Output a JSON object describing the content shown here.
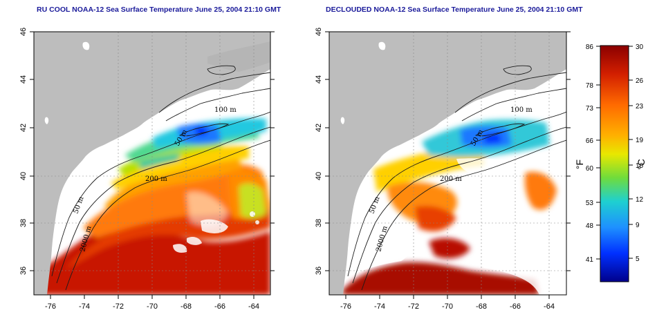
{
  "titles": {
    "left": "RU COOL NOAA-12 Sea Surface Temperature June 25, 2004 21:10 GMT",
    "right": "DECLOUDED NOAA-12 Sea Surface Temperature June 25, 2004 21:10 GMT"
  },
  "axes": {
    "lon_ticks": [
      "-76",
      "-74",
      "-72",
      "-70",
      "-68",
      "-66",
      "-64"
    ],
    "lat_ticks": [
      "46",
      "44",
      "42",
      "40",
      "38",
      "36"
    ]
  },
  "contour_labels": {
    "left": [
      "100 m",
      "50 m",
      "200 m",
      "50 m",
      "2000 m"
    ],
    "right": [
      "100 m",
      "50 m",
      "200 m",
      "50 m",
      "2000 m"
    ]
  },
  "colorbar": {
    "fahrenheit_unit": "°F",
    "celsius_unit": "°C",
    "fahrenheit_ticks": [
      "86",
      "78",
      "73",
      "66",
      "60",
      "53",
      "48",
      "41"
    ],
    "celsius_ticks": [
      "30",
      "26",
      "23",
      "19",
      "16",
      "12",
      "9",
      "5"
    ],
    "colors": [
      "#8b0000",
      "#d21f00",
      "#ff6a00",
      "#ffb000",
      "#e8e800",
      "#6fdc3c",
      "#1ed0d0",
      "#1e90ff",
      "#0030ff",
      "#00008b"
    ]
  },
  "colors": {
    "land": "#bdbdbd",
    "ocean_cloud": "#ffffff",
    "title": "#1a1a9a"
  }
}
